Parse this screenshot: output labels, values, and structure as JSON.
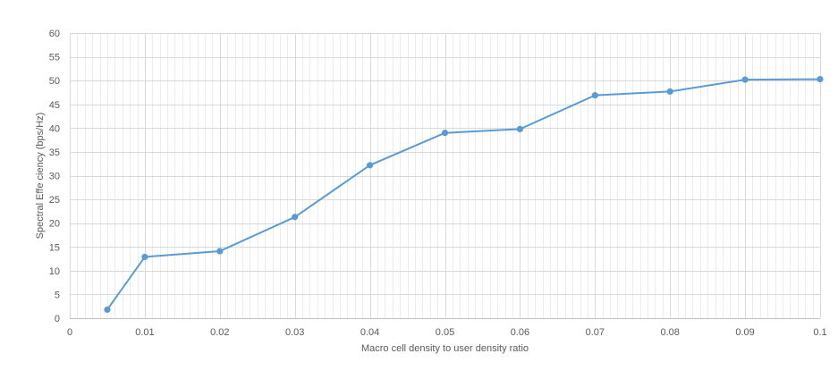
{
  "chart_data": {
    "type": "scatter",
    "title": "",
    "xlabel": "Macro cell density to user density ratio",
    "ylabel": "Spectral Effe ciency (bps/Hz)",
    "xlim": [
      0,
      0.1
    ],
    "ylim": [
      0,
      60
    ],
    "x_ticks": [
      0,
      0.01,
      0.02,
      0.03,
      0.04,
      0.05,
      0.06,
      0.07,
      0.08,
      0.09,
      0.1
    ],
    "x_tick_labels": [
      "0",
      "0.01",
      "0.02",
      "0.03",
      "0.04",
      "0.05",
      "0.06",
      "0.07",
      "0.08",
      "0.09",
      "0.1"
    ],
    "y_ticks": [
      0,
      5,
      10,
      15,
      20,
      25,
      30,
      35,
      40,
      45,
      50,
      55,
      60
    ],
    "y_tick_labels": [
      "0",
      "5",
      "10",
      "15",
      "20",
      "25",
      "30",
      "35",
      "40",
      "45",
      "50",
      "55",
      "60"
    ],
    "x_minor_step": 0.001,
    "grid": true,
    "legend": "none",
    "line_color": "#5B9BD5",
    "series": [
      {
        "x": [
          0.005,
          0.01,
          0.02,
          0.03,
          0.04,
          0.05,
          0.06,
          0.07,
          0.08,
          0.09,
          0.1
        ],
        "y": [
          1.8,
          12.9,
          14.1,
          21.3,
          32.2,
          39.0,
          39.8,
          46.9,
          47.7,
          50.2,
          50.3
        ]
      }
    ]
  }
}
